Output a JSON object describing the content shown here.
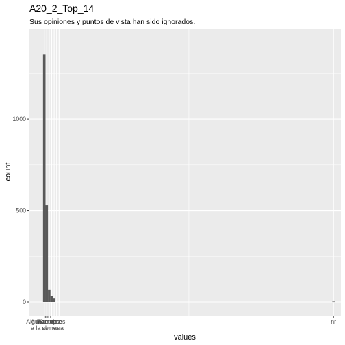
{
  "chart_data": {
    "type": "bar",
    "title": "A20_2_Top_14",
    "subtitle": "Sus opiniones y puntos de vista han sido ignorados.",
    "xlabel": "values",
    "ylabel": "count",
    "ylim": [
      0,
      1420
    ],
    "yticks": [
      0,
      500,
      1000
    ],
    "grid": true,
    "colors": {
      "panel": "#ebebeb",
      "grid_major": "#ffffff",
      "bar": "#595959",
      "tick": "#333333"
    },
    "x_tick_labels": [
      "A menudo",
      "Algunas veces",
      "Nunca",
      "Rara vez",
      "Siempre",
      "a la semana",
      "al mes",
      "nr"
    ],
    "bars": [
      {
        "x": 0.0,
        "value": 1355
      },
      {
        "x": 1.0,
        "value": 528
      },
      {
        "x": 2.0,
        "value": 68
      },
      {
        "x": 3.0,
        "value": 32
      },
      {
        "x": 4.0,
        "value": 18
      },
      {
        "x": 117.0,
        "value": 2
      }
    ],
    "xlim": [
      -6.0,
      120.0
    ]
  }
}
